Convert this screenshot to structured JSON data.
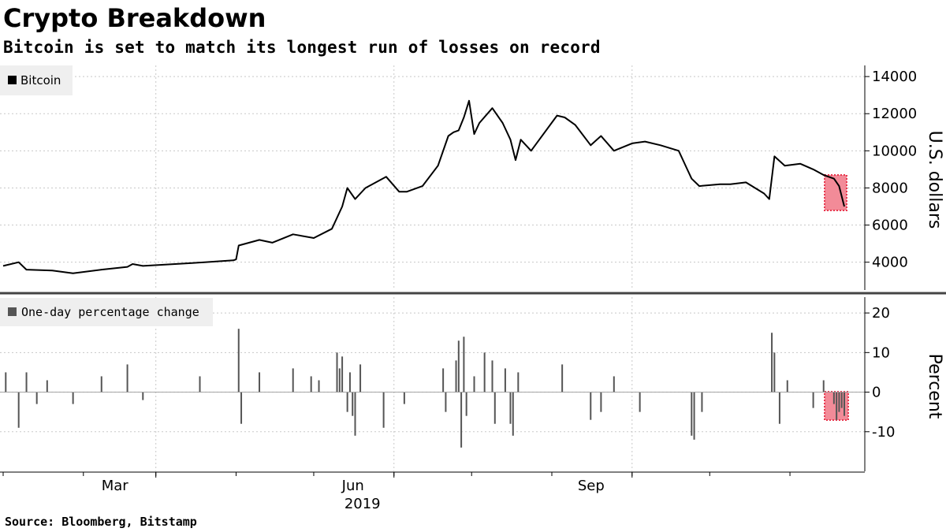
{
  "title": "Crypto Breakdown",
  "subtitle": "Bitcoin is set to match its longest run of losses on record",
  "source": "Source: Bloomberg, Bitstamp",
  "colors": {
    "line": "#000000",
    "bars": "#555555",
    "highlight_fill": "#f28b98",
    "highlight_border": "#e8384f",
    "grid": "#c8c8c8",
    "divider": "#444444"
  },
  "chart_data": [
    {
      "type": "line",
      "legend": "Bitcoin",
      "ylabel": "U.S. dollars",
      "ylim": [
        2500,
        14600
      ],
      "yticks": [
        4000,
        6000,
        8000,
        10000,
        12000,
        14000
      ],
      "ytick_labels": [
        "4000",
        "6000",
        "8000",
        "10000",
        "12000",
        "14000"
      ],
      "grid": true,
      "legend_position": "top-left",
      "series": [
        {
          "name": "Bitcoin",
          "x": [
            "2019-01-01",
            "2019-01-07",
            "2019-01-10",
            "2019-01-20",
            "2019-01-28",
            "2019-02-08",
            "2019-02-18",
            "2019-02-20",
            "2019-02-24",
            "2019-03-15",
            "2019-03-31",
            "2019-04-01",
            "2019-04-02",
            "2019-04-10",
            "2019-04-15",
            "2019-04-23",
            "2019-05-01",
            "2019-05-08",
            "2019-05-12",
            "2019-05-14",
            "2019-05-17",
            "2019-05-21",
            "2019-05-29",
            "2019-06-03",
            "2019-06-06",
            "2019-06-12",
            "2019-06-18",
            "2019-06-22",
            "2019-06-24",
            "2019-06-26",
            "2019-06-28",
            "2019-06-30",
            "2019-07-02",
            "2019-07-04",
            "2019-07-09",
            "2019-07-13",
            "2019-07-16",
            "2019-07-18",
            "2019-07-20",
            "2019-07-24",
            "2019-08-03",
            "2019-08-06",
            "2019-08-10",
            "2019-08-16",
            "2019-08-20",
            "2019-08-25",
            "2019-09-01",
            "2019-09-06",
            "2019-09-12",
            "2019-09-19",
            "2019-09-22",
            "2019-09-24",
            "2019-09-27",
            "2019-10-05",
            "2019-10-09",
            "2019-10-15",
            "2019-10-22",
            "2019-10-24",
            "2019-10-26",
            "2019-10-30",
            "2019-11-05",
            "2019-11-10",
            "2019-11-14",
            "2019-11-18",
            "2019-11-20",
            "2019-11-22"
          ],
          "values": [
            3800,
            4000,
            3600,
            3550,
            3400,
            3600,
            3750,
            3900,
            3800,
            3950,
            4100,
            4150,
            4900,
            5200,
            5050,
            5500,
            5300,
            5800,
            7000,
            8000,
            7400,
            8000,
            8600,
            7800,
            7800,
            8100,
            9200,
            10800,
            11000,
            11100,
            11800,
            12700,
            10900,
            11500,
            12300,
            11500,
            10600,
            9500,
            10600,
            10000,
            11900,
            11800,
            11400,
            10300,
            10800,
            10000,
            10400,
            10500,
            10300,
            10000,
            9100,
            8500,
            8100,
            8200,
            8200,
            8300,
            7700,
            7400,
            9700,
            9200,
            9300,
            9000,
            8700,
            8500,
            8100,
            7000
          ]
        }
      ]
    },
    {
      "type": "bar",
      "legend": "One-day percentage change",
      "ylabel": "Percent",
      "ylim": [
        -20,
        24
      ],
      "yticks": [
        -10,
        0,
        10,
        20
      ],
      "ytick_labels": [
        "-10",
        "0",
        "10",
        "20"
      ],
      "grid": true,
      "legend_position": "top-left",
      "series": [
        {
          "name": "One-day percentage change",
          "x": [
            "2019-01-02",
            "2019-01-07",
            "2019-01-10",
            "2019-01-14",
            "2019-01-18",
            "2019-01-28",
            "2019-02-08",
            "2019-02-18",
            "2019-02-24",
            "2019-03-18",
            "2019-04-02",
            "2019-04-03",
            "2019-04-10",
            "2019-04-23",
            "2019-04-30",
            "2019-05-03",
            "2019-05-10",
            "2019-05-11",
            "2019-05-12",
            "2019-05-14",
            "2019-05-15",
            "2019-05-16",
            "2019-05-17",
            "2019-05-19",
            "2019-05-28",
            "2019-06-05",
            "2019-06-20",
            "2019-06-21",
            "2019-06-25",
            "2019-06-26",
            "2019-06-27",
            "2019-06-28",
            "2019-06-29",
            "2019-07-02",
            "2019-07-06",
            "2019-07-09",
            "2019-07-10",
            "2019-07-14",
            "2019-07-16",
            "2019-07-17",
            "2019-07-19",
            "2019-08-05",
            "2019-08-16",
            "2019-08-20",
            "2019-08-25",
            "2019-09-04",
            "2019-09-24",
            "2019-09-25",
            "2019-09-28",
            "2019-10-25",
            "2019-10-26",
            "2019-10-28",
            "2019-10-31",
            "2019-11-10",
            "2019-11-14",
            "2019-11-18",
            "2019-11-19",
            "2019-11-20",
            "2019-11-21",
            "2019-11-22"
          ],
          "values": [
            5,
            -9,
            5,
            -3,
            3,
            -3,
            4,
            7,
            -2,
            4,
            16,
            -8,
            5,
            6,
            4,
            3,
            10,
            6,
            9,
            -5,
            5,
            -6,
            -11,
            7,
            -9,
            -3,
            6,
            -5,
            8,
            13,
            -14,
            14,
            -6,
            4,
            10,
            8,
            -8,
            6,
            -8,
            -11,
            5,
            7,
            -7,
            -5,
            4,
            -5,
            -11,
            -12,
            -5,
            15,
            10,
            -8,
            3,
            -4,
            3,
            -3,
            -7,
            -5,
            -4,
            -6
          ]
        }
      ]
    }
  ],
  "x_axis": {
    "tick_labels": [
      "Mar",
      "Jun",
      "Sep"
    ],
    "year_label": "2019"
  }
}
